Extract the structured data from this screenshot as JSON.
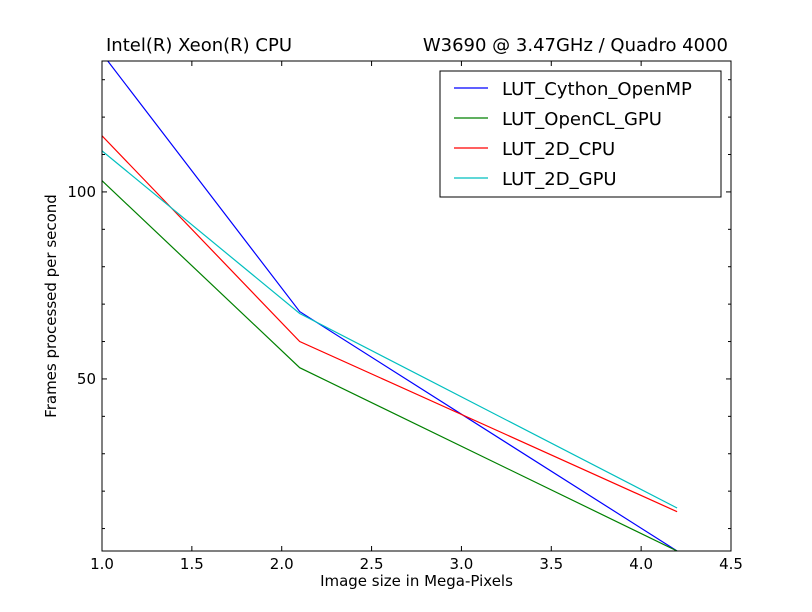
{
  "chart_data": {
    "type": "line",
    "title_left": "Intel(R) Xeon(R) CPU",
    "title_right": "W3690  @ 3.47GHz / Quadro 4000",
    "xlabel": "Image size in Mega-Pixels",
    "ylabel": "Frames processed per second",
    "xlim": [
      1.0,
      4.5
    ],
    "ylim": [
      4,
      135
    ],
    "xticks": [
      1.0,
      1.5,
      2.0,
      2.5,
      3.0,
      3.5,
      4.0,
      4.5
    ],
    "xtick_labels": [
      "1.0",
      "1.5",
      "2.0",
      "2.5",
      "3.0",
      "3.5",
      "4.0",
      "4.5"
    ],
    "yticks": [
      50,
      100
    ],
    "ytick_labels": [
      "50",
      "100"
    ],
    "legend_position": "top-right",
    "series": [
      {
        "name": "LUT_Cython_OpenMP",
        "color": "#0000ff",
        "x": [
          1.0,
          2.1,
          4.2
        ],
        "y": [
          137,
          68,
          4
        ]
      },
      {
        "name": "LUT_OpenCL_GPU",
        "color": "#008000",
        "x": [
          1.0,
          2.1,
          4.2
        ],
        "y": [
          103,
          53,
          4
        ]
      },
      {
        "name": "LUT_2D_CPU",
        "color": "#ff0000",
        "x": [
          1.0,
          2.1,
          4.2
        ],
        "y": [
          115,
          60,
          14.5
        ]
      },
      {
        "name": "LUT_2D_GPU",
        "color": "#00bfbf",
        "x": [
          1.0,
          2.1,
          4.2
        ],
        "y": [
          111,
          67.5,
          15.5
        ]
      }
    ]
  }
}
